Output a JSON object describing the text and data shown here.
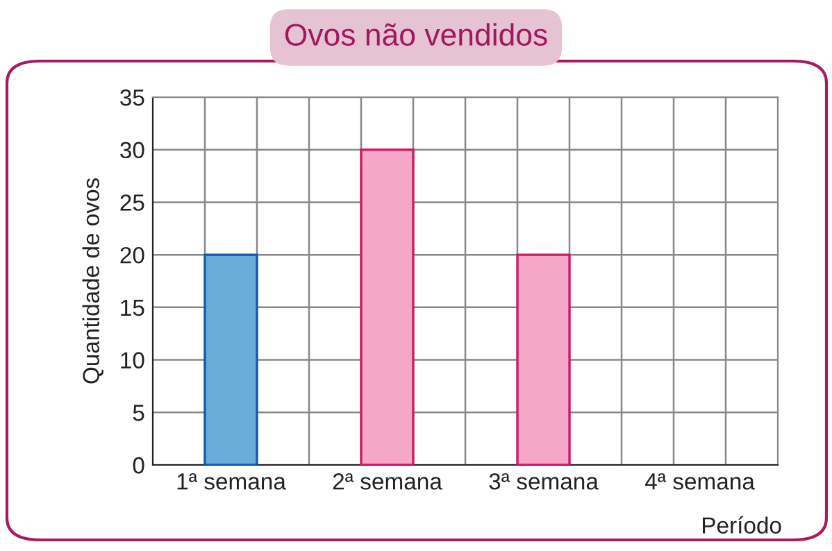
{
  "chart_data": {
    "type": "bar",
    "title": "Ovos não vendidos",
    "xlabel": "Período",
    "ylabel": "Quantidade de ovos",
    "categories": [
      "1ª semana",
      "2ª semana",
      "3ª semana",
      "4ª semana"
    ],
    "values": [
      20,
      30,
      20,
      0
    ],
    "colors": [
      "#6aaed8",
      "#f2a8c6",
      "#f2a8c6",
      "#f2a8c6"
    ],
    "ylim": [
      0,
      35
    ],
    "yticks": [
      0,
      5,
      10,
      15,
      20,
      25,
      30,
      35
    ],
    "grid": true,
    "legend": false
  }
}
